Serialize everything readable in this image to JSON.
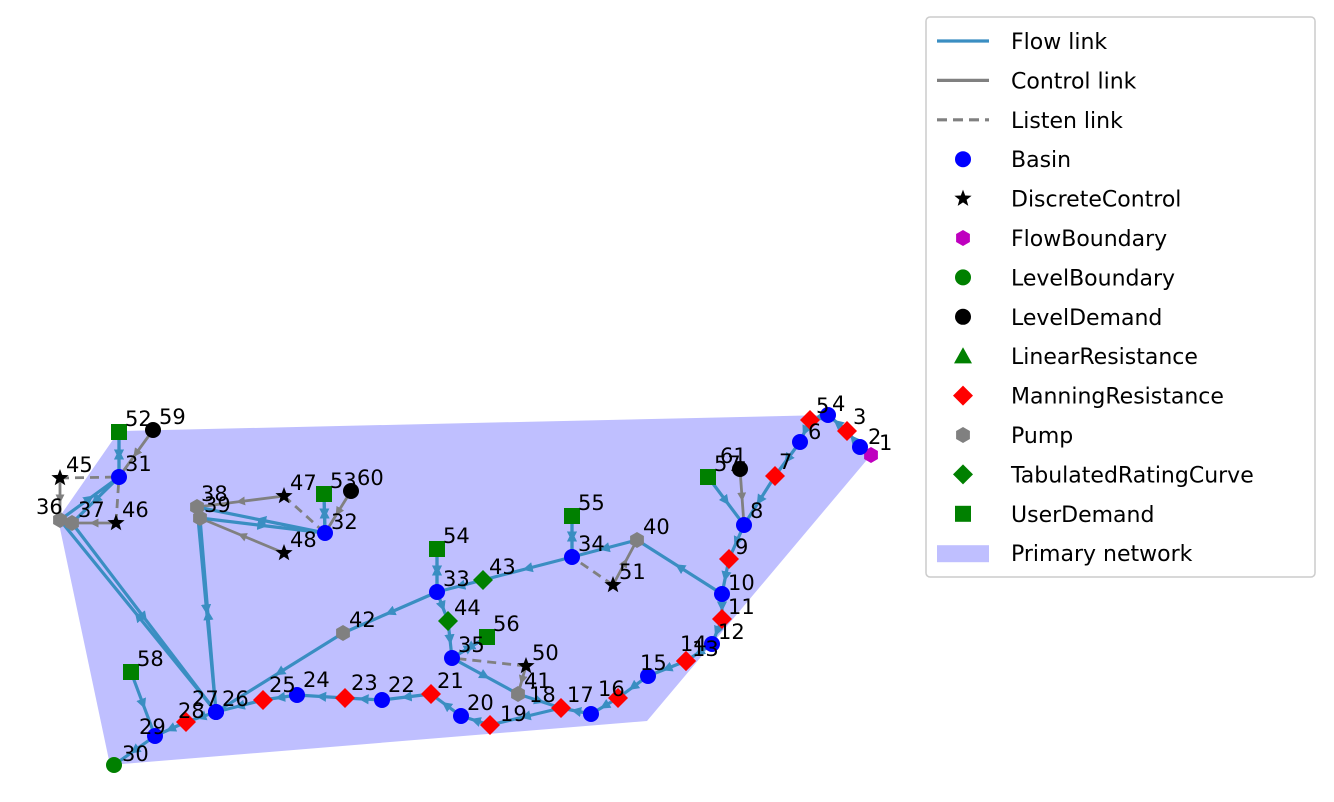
{
  "colors": {
    "flow": "#3a8ec2",
    "control": "#808080",
    "network_fill": "#bfbfff",
    "basin": "#0000ff",
    "discrete_control": "#000000",
    "flow_boundary": "#bf00bf",
    "level_boundary": "#008000",
    "level_demand": "#000000",
    "linear_resistance": "#008000",
    "manning_resistance": "#ff0000",
    "pump": "#808080",
    "tabulated_rating_curve": "#008000",
    "user_demand": "#008000"
  },
  "legend": {
    "items": [
      {
        "label": "Flow link",
        "kind": "flow"
      },
      {
        "label": "Control link",
        "kind": "control"
      },
      {
        "label": "Listen link",
        "kind": "listen"
      },
      {
        "label": "Basin",
        "kind": "basin"
      },
      {
        "label": "DiscreteControl",
        "kind": "discrete_control"
      },
      {
        "label": "FlowBoundary",
        "kind": "flow_boundary"
      },
      {
        "label": "LevelBoundary",
        "kind": "level_boundary"
      },
      {
        "label": "LevelDemand",
        "kind": "level_demand"
      },
      {
        "label": "LinearResistance",
        "kind": "linear_resistance"
      },
      {
        "label": "ManningResistance",
        "kind": "manning_resistance"
      },
      {
        "label": "Pump",
        "kind": "pump"
      },
      {
        "label": "TabulatedRatingCurve",
        "kind": "tabulated_rating_curve"
      },
      {
        "label": "UserDemand",
        "kind": "user_demand"
      },
      {
        "label": "Primary network",
        "kind": "network"
      }
    ]
  },
  "nodes": [
    {
      "id": "1",
      "type": "flow_boundary"
    },
    {
      "id": "2",
      "type": "basin"
    },
    {
      "id": "3",
      "type": "manning_resistance"
    },
    {
      "id": "4",
      "type": "basin"
    },
    {
      "id": "5",
      "type": "manning_resistance"
    },
    {
      "id": "6",
      "type": "basin"
    },
    {
      "id": "7",
      "type": "manning_resistance"
    },
    {
      "id": "8",
      "type": "basin"
    },
    {
      "id": "9",
      "type": "manning_resistance"
    },
    {
      "id": "10",
      "type": "basin"
    },
    {
      "id": "11",
      "type": "manning_resistance"
    },
    {
      "id": "12",
      "type": "basin"
    },
    {
      "id": "13",
      "type": "manning_resistance"
    },
    {
      "id": "14",
      "type": "manning_resistance"
    },
    {
      "id": "15",
      "type": "basin"
    },
    {
      "id": "16",
      "type": "manning_resistance"
    },
    {
      "id": "17",
      "type": "basin"
    },
    {
      "id": "18",
      "type": "manning_resistance"
    },
    {
      "id": "19",
      "type": "manning_resistance"
    },
    {
      "id": "20",
      "type": "basin"
    },
    {
      "id": "21",
      "type": "manning_resistance"
    },
    {
      "id": "22",
      "type": "basin"
    },
    {
      "id": "23",
      "type": "manning_resistance"
    },
    {
      "id": "24",
      "type": "basin"
    },
    {
      "id": "25",
      "type": "manning_resistance"
    },
    {
      "id": "26",
      "type": "basin"
    },
    {
      "id": "27",
      "type": "basin"
    },
    {
      "id": "28",
      "type": "manning_resistance"
    },
    {
      "id": "29",
      "type": "basin"
    },
    {
      "id": "30",
      "type": "level_boundary"
    },
    {
      "id": "31",
      "type": "basin"
    },
    {
      "id": "32",
      "type": "basin"
    },
    {
      "id": "33",
      "type": "basin"
    },
    {
      "id": "34",
      "type": "basin"
    },
    {
      "id": "35",
      "type": "basin"
    },
    {
      "id": "36",
      "type": "pump"
    },
    {
      "id": "37",
      "type": "pump"
    },
    {
      "id": "38",
      "type": "pump"
    },
    {
      "id": "39",
      "type": "pump"
    },
    {
      "id": "40",
      "type": "pump"
    },
    {
      "id": "41",
      "type": "pump"
    },
    {
      "id": "42",
      "type": "pump"
    },
    {
      "id": "43",
      "type": "tabulated_rating_curve"
    },
    {
      "id": "44",
      "type": "tabulated_rating_curve"
    },
    {
      "id": "45",
      "type": "discrete_control"
    },
    {
      "id": "46",
      "type": "discrete_control"
    },
    {
      "id": "47",
      "type": "discrete_control"
    },
    {
      "id": "48",
      "type": "discrete_control"
    },
    {
      "id": "50",
      "type": "discrete_control"
    },
    {
      "id": "51",
      "type": "discrete_control"
    },
    {
      "id": "52",
      "type": "user_demand"
    },
    {
      "id": "53",
      "type": "user_demand"
    },
    {
      "id": "54",
      "type": "user_demand"
    },
    {
      "id": "55",
      "type": "user_demand"
    },
    {
      "id": "56",
      "type": "user_demand"
    },
    {
      "id": "57",
      "type": "user_demand"
    },
    {
      "id": "58",
      "type": "user_demand"
    },
    {
      "id": "59",
      "type": "level_demand"
    },
    {
      "id": "60",
      "type": "level_demand"
    },
    {
      "id": "61",
      "type": "level_demand"
    }
  ],
  "edges": {
    "flow": [
      [
        "1",
        "2"
      ],
      [
        "2",
        "3"
      ],
      [
        "3",
        "4"
      ],
      [
        "4",
        "5"
      ],
      [
        "5",
        "6"
      ],
      [
        "6",
        "7"
      ],
      [
        "7",
        "8"
      ],
      [
        "8",
        "9"
      ],
      [
        "9",
        "10"
      ],
      [
        "10",
        "11"
      ],
      [
        "11",
        "12"
      ],
      [
        "12",
        "13"
      ],
      [
        "13",
        "14"
      ],
      [
        "14",
        "15"
      ],
      [
        "15",
        "16"
      ],
      [
        "16",
        "17"
      ],
      [
        "17",
        "18"
      ],
      [
        "18",
        "19"
      ],
      [
        "19",
        "20"
      ],
      [
        "20",
        "21"
      ],
      [
        "21",
        "22"
      ],
      [
        "22",
        "23"
      ],
      [
        "23",
        "24"
      ],
      [
        "24",
        "25"
      ],
      [
        "25",
        "26"
      ],
      [
        "26",
        "27"
      ],
      [
        "27",
        "28"
      ],
      [
        "28",
        "29"
      ],
      [
        "29",
        "30"
      ],
      [
        "10",
        "40"
      ],
      [
        "40",
        "34"
      ],
      [
        "34",
        "43"
      ],
      [
        "43",
        "33"
      ],
      [
        "33",
        "42"
      ],
      [
        "42",
        "26"
      ],
      [
        "33",
        "44"
      ],
      [
        "44",
        "35"
      ],
      [
        "35",
        "41"
      ],
      [
        "41",
        "18"
      ],
      [
        "27",
        "39"
      ],
      [
        "39",
        "32"
      ],
      [
        "32",
        "38"
      ],
      [
        "38",
        "27"
      ],
      [
        "27",
        "36"
      ],
      [
        "36",
        "31"
      ],
      [
        "31",
        "37"
      ],
      [
        "37",
        "27"
      ],
      [
        "52",
        "31"
      ],
      [
        "31",
        "52"
      ],
      [
        "53",
        "32"
      ],
      [
        "32",
        "53"
      ],
      [
        "54",
        "33"
      ],
      [
        "33",
        "54"
      ],
      [
        "55",
        "34"
      ],
      [
        "34",
        "55"
      ],
      [
        "56",
        "35"
      ],
      [
        "35",
        "56"
      ],
      [
        "57",
        "8"
      ],
      [
        "58",
        "29"
      ]
    ],
    "control": [
      [
        "45",
        "36"
      ],
      [
        "46",
        "37"
      ],
      [
        "47",
        "38"
      ],
      [
        "48",
        "39"
      ],
      [
        "51",
        "40"
      ],
      [
        "50",
        "41"
      ],
      [
        "59",
        "31"
      ],
      [
        "60",
        "32"
      ],
      [
        "61",
        "8"
      ]
    ],
    "listen": [
      [
        "45",
        "31"
      ],
      [
        "46",
        "31"
      ],
      [
        "47",
        "32"
      ],
      [
        "51",
        "34"
      ],
      [
        "50",
        "35"
      ]
    ]
  }
}
